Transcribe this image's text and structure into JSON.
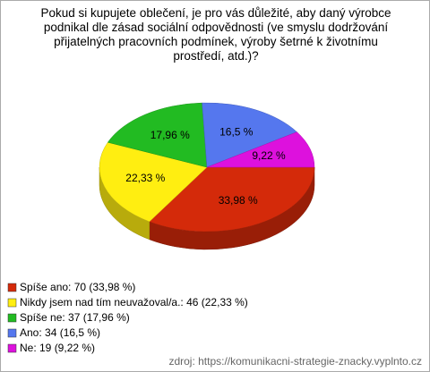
{
  "chart_data": {
    "type": "pie3d",
    "title": "Pokud si kupujete oblečení, je pro vás důležité, aby daný výrobce podnikal dle zásad sociální odpovědnosti (ve smyslu dodržování přijatelných pracovních podmínek, výroby šetrné k životnímu prostředí, atd.)?",
    "categories": [
      "Spíše ano: 70 (33,98 %)",
      "Nikdy jsem nad tím neuvažoval/a.: 46 (22,33 %)",
      "Spíše ne: 37 (17,96 %)",
      "Ano: 34 (16,5 %)",
      "Ne: 19 (9,22 %)"
    ],
    "values": [
      33.98,
      22.33,
      17.96,
      16.5,
      9.22
    ],
    "value_labels": [
      "33,98 %",
      "22,33 %",
      "17,96 %",
      "16,5 %",
      "9,22 %"
    ],
    "colors": [
      "#d42a0a",
      "#ffee11",
      "#22bb22",
      "#5577ee",
      "#dd11dd"
    ],
    "source": "zdroj: https://komunikacni-strategie-znacky.vyplnto.cz"
  }
}
